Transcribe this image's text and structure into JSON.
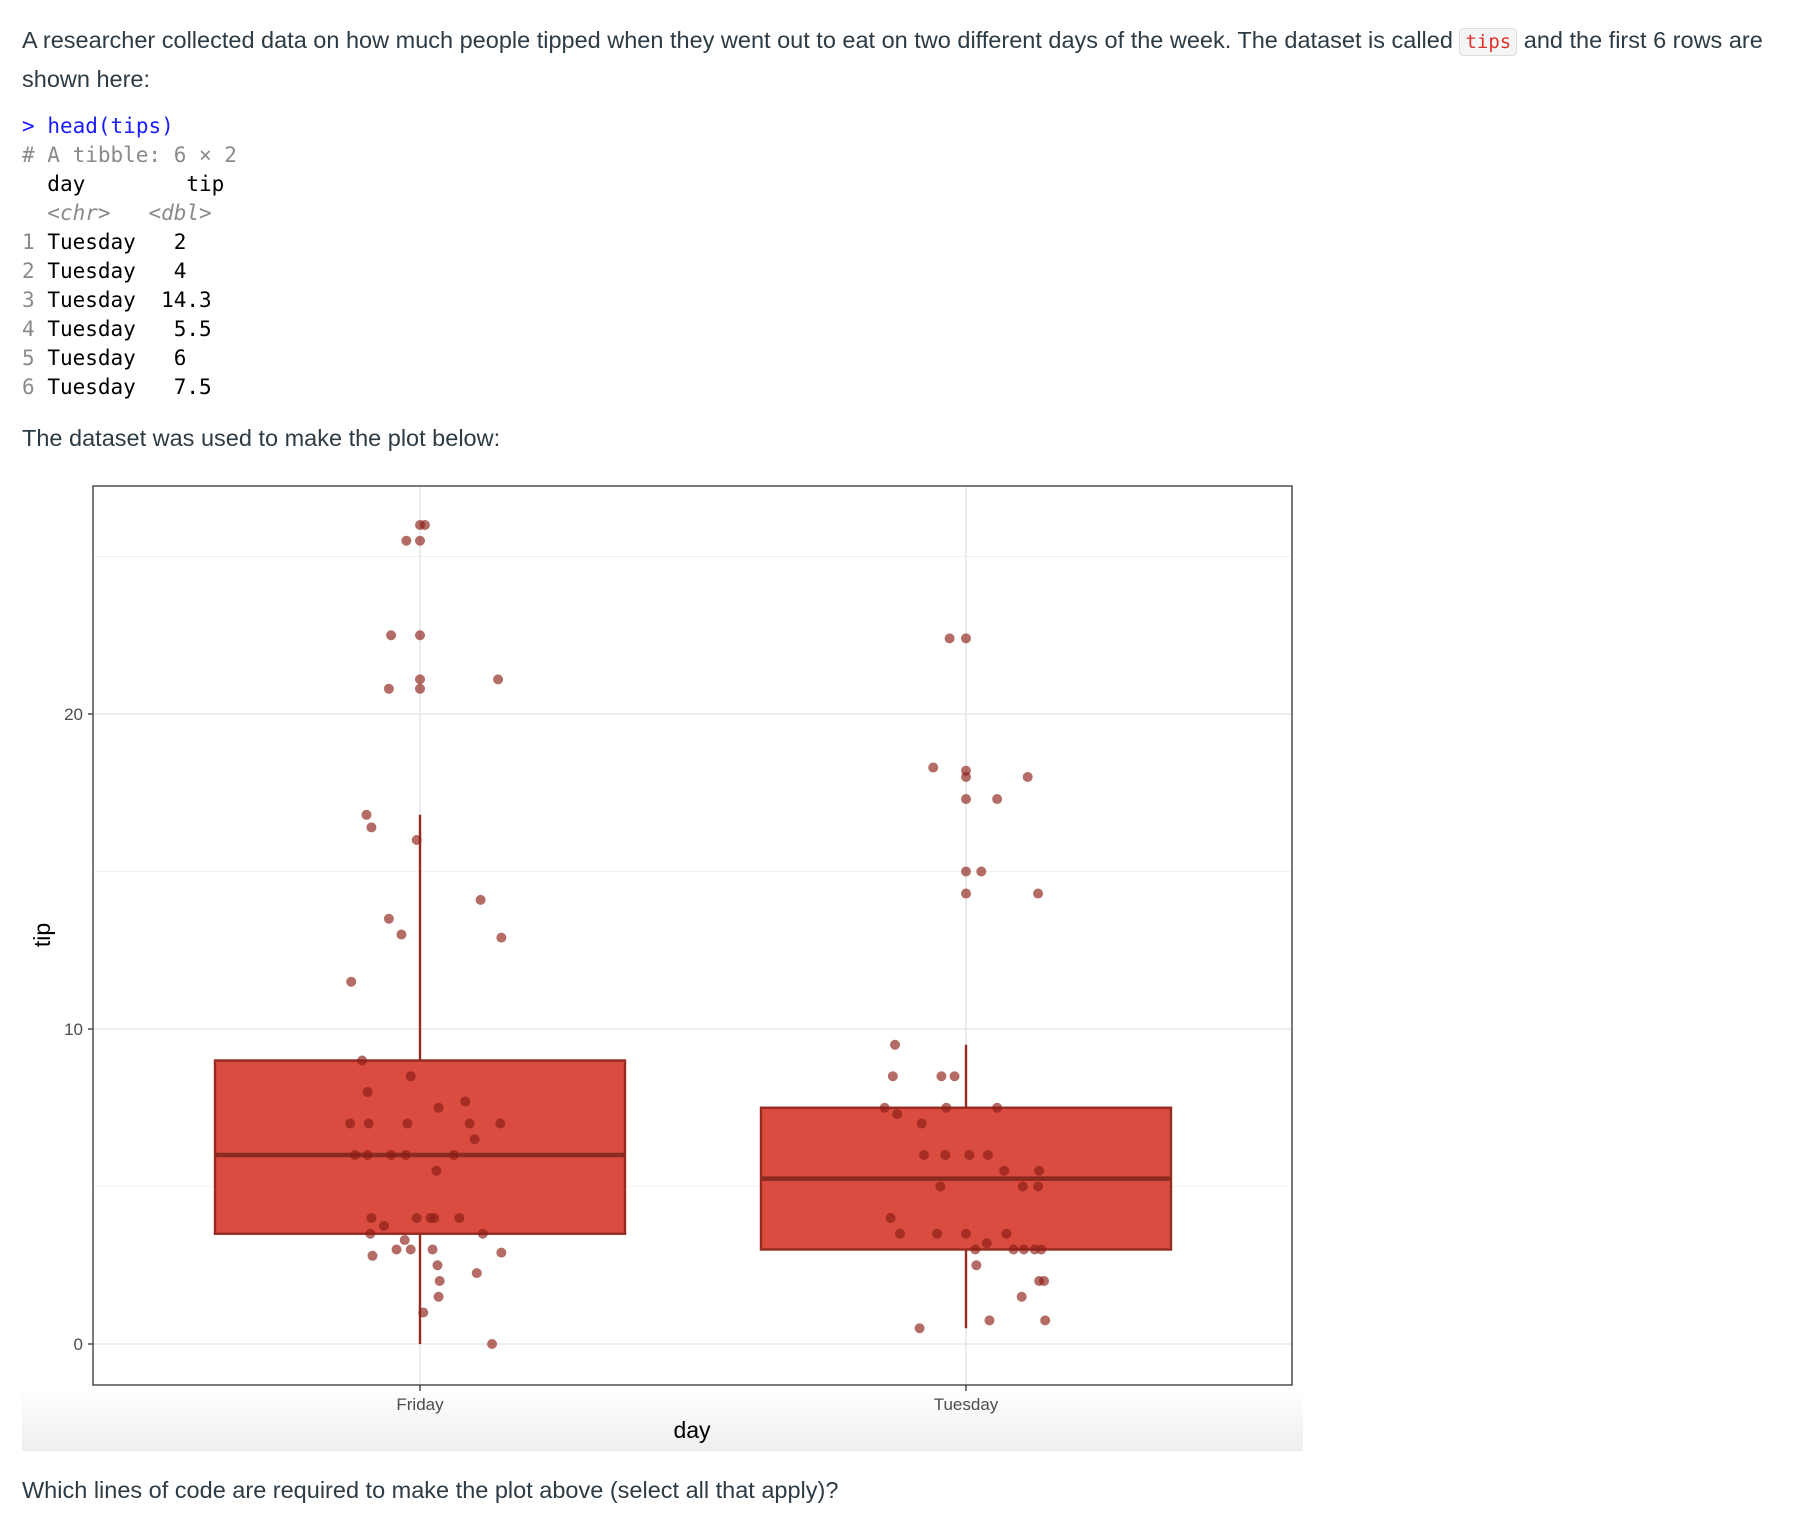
{
  "intro": {
    "before_code": "A researcher collected data on how much people tipped when they went out to eat on two different days of the week. The dataset is called",
    "inline_code": "tips",
    "after_code": "and the first 6 rows are shown here:"
  },
  "console": {
    "prompt": ">",
    "command": "head(tips)",
    "tibble_line": "# A tibble: 6 × 2",
    "columns": [
      "day",
      "tip"
    ],
    "types": [
      "<chr>",
      "<dbl>"
    ],
    "rows": [
      {
        "n": "1",
        "day": "Tuesday",
        "tip": "2"
      },
      {
        "n": "2",
        "day": "Tuesday",
        "tip": "4"
      },
      {
        "n": "3",
        "day": "Tuesday",
        "tip": "14.3"
      },
      {
        "n": "4",
        "day": "Tuesday",
        "tip": "5.5"
      },
      {
        "n": "5",
        "day": "Tuesday",
        "tip": "6"
      },
      {
        "n": "6",
        "day": "Tuesday",
        "tip": "7.5"
      }
    ]
  },
  "plot_intro": "The dataset was used to make the plot below:",
  "question": "Which lines of code are required to make the plot above (select all that apply)?",
  "chart_data": {
    "type": "boxplot+jitter",
    "xlabel": "day",
    "ylabel": "tip",
    "categories": [
      "Friday",
      "Tuesday"
    ],
    "ylim": [
      -1.3,
      27.7
    ],
    "yticks": [
      0,
      10,
      20
    ],
    "grid": true,
    "colors": {
      "box_fill": "#d94c3f",
      "box_line": "#962b22",
      "point": "#8b1d14"
    },
    "boxes": [
      {
        "category": "Friday",
        "min": 0,
        "q1": 3.5,
        "median": 6,
        "q3": 9,
        "max": 16.8
      },
      {
        "category": "Tuesday",
        "min": 0.5,
        "q1": 3,
        "median": 5.25,
        "q3": 7.5,
        "max": 9.5
      }
    ],
    "points": [
      [
        1.0,
        26.0
      ],
      [
        1.009,
        26.0
      ],
      [
        0.975,
        25.5
      ],
      [
        1.0,
        25.5
      ],
      [
        0.947,
        22.5
      ],
      [
        1.0,
        22.5
      ],
      [
        1.0,
        21.1
      ],
      [
        1.143,
        21.1
      ],
      [
        0.943,
        20.8
      ],
      [
        1.0,
        20.8
      ],
      [
        0.902,
        16.8
      ],
      [
        0.911,
        16.4
      ],
      [
        0.994,
        16.0
      ],
      [
        1.111,
        14.1
      ],
      [
        0.943,
        13.5
      ],
      [
        0.966,
        13.0
      ],
      [
        1.149,
        12.9
      ],
      [
        0.874,
        11.5
      ],
      [
        0.894,
        9.0
      ],
      [
        0.983,
        8.5
      ],
      [
        0.904,
        8.0
      ],
      [
        1.083,
        7.7
      ],
      [
        1.034,
        7.5
      ],
      [
        0.872,
        7.0
      ],
      [
        0.906,
        7.0
      ],
      [
        0.977,
        7.0
      ],
      [
        1.091,
        7.0
      ],
      [
        1.147,
        7.0
      ],
      [
        1.1,
        6.5
      ],
      [
        0.881,
        6.0
      ],
      [
        0.904,
        6.0
      ],
      [
        0.947,
        6.0
      ],
      [
        0.974,
        6.0
      ],
      [
        1.062,
        6.0
      ],
      [
        1.03,
        5.5
      ],
      [
        0.911,
        4.0
      ],
      [
        0.934,
        3.75
      ],
      [
        0.994,
        4.0
      ],
      [
        1.019,
        4.0
      ],
      [
        1.026,
        4.0
      ],
      [
        1.072,
        4.0
      ],
      [
        1.115,
        3.5
      ],
      [
        0.909,
        3.5
      ],
      [
        0.972,
        3.3
      ],
      [
        0.957,
        3.0
      ],
      [
        0.983,
        3.0
      ],
      [
        1.023,
        3.0
      ],
      [
        1.149,
        2.9
      ],
      [
        0.913,
        2.8
      ],
      [
        1.032,
        2.5
      ],
      [
        1.104,
        2.25
      ],
      [
        1.036,
        2.0
      ],
      [
        1.034,
        1.5
      ],
      [
        1.006,
        1.0
      ],
      [
        1.132,
        0.0
      ],
      [
        1.97,
        22.4
      ],
      [
        2.0,
        22.4
      ],
      [
        1.94,
        18.3
      ],
      [
        2.0,
        18.2
      ],
      [
        2.0,
        18.0
      ],
      [
        2.113,
        18.0
      ],
      [
        2.0,
        17.3
      ],
      [
        2.057,
        17.3
      ],
      [
        2.0,
        15.0
      ],
      [
        2.028,
        15.0
      ],
      [
        2.0,
        14.3
      ],
      [
        2.132,
        14.3
      ],
      [
        1.87,
        9.5
      ],
      [
        1.866,
        8.5
      ],
      [
        1.955,
        8.5
      ],
      [
        1.979,
        8.5
      ],
      [
        1.851,
        7.5
      ],
      [
        1.874,
        7.3
      ],
      [
        1.964,
        7.5
      ],
      [
        2.057,
        7.5
      ],
      [
        1.919,
        7.0
      ],
      [
        1.923,
        6.0
      ],
      [
        1.962,
        6.0
      ],
      [
        2.006,
        6.0
      ],
      [
        2.04,
        6.0
      ],
      [
        2.07,
        5.5
      ],
      [
        2.134,
        5.5
      ],
      [
        1.953,
        5.0
      ],
      [
        2.104,
        5.0
      ],
      [
        2.132,
        5.0
      ],
      [
        1.862,
        4.0
      ],
      [
        1.879,
        3.5
      ],
      [
        1.947,
        3.5
      ],
      [
        2.0,
        3.5
      ],
      [
        2.074,
        3.5
      ],
      [
        2.038,
        3.2
      ],
      [
        2.017,
        3.0
      ],
      [
        2.087,
        3.0
      ],
      [
        2.106,
        3.0
      ],
      [
        2.126,
        3.0
      ],
      [
        2.138,
        3.0
      ],
      [
        2.019,
        2.5
      ],
      [
        2.134,
        2.0
      ],
      [
        2.143,
        2.0
      ],
      [
        2.102,
        1.5
      ],
      [
        2.043,
        0.75
      ],
      [
        2.145,
        0.75
      ],
      [
        1.915,
        0.5
      ]
    ]
  }
}
